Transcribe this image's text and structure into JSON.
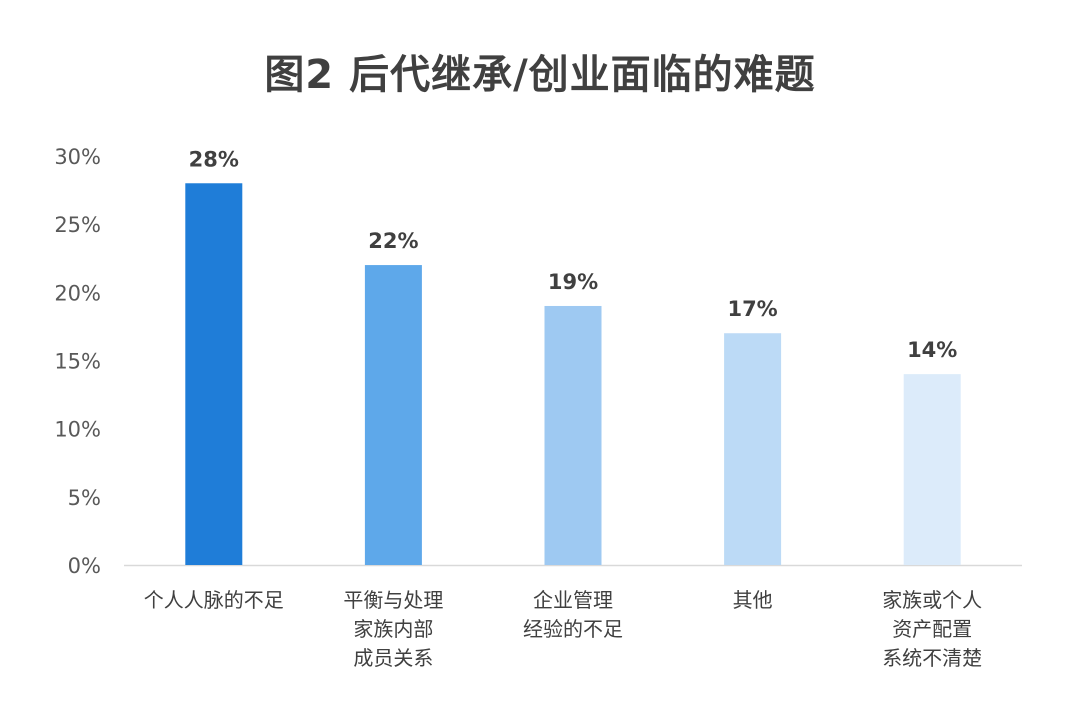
{
  "chart_data": {
    "type": "bar",
    "title": "图2 后代继承/创业面临的难题",
    "categories": [
      [
        "个人人脉的不足"
      ],
      [
        "平衡与处理",
        "家族内部",
        "成员关系"
      ],
      [
        "企业管理",
        "经验的不足"
      ],
      [
        "其他"
      ],
      [
        "家族或个人",
        "资产配置",
        "系统不清楚"
      ]
    ],
    "values": [
      28,
      22,
      19,
      17,
      14
    ],
    "data_labels": [
      "28%",
      "22%",
      "19%",
      "17%",
      "14%"
    ],
    "bar_colors": [
      "#1f7dd8",
      "#5ea8ea",
      "#9ec9f2",
      "#bcdaf6",
      "#dcebfa"
    ],
    "yticks": [
      "0%",
      "5%",
      "10%",
      "15%",
      "20%",
      "25%",
      "30%"
    ],
    "ytick_values": [
      0,
      5,
      10,
      15,
      20,
      25,
      30
    ],
    "ylim": [
      0,
      30
    ],
    "grid": false,
    "xlabel": "",
    "ylabel": ""
  }
}
